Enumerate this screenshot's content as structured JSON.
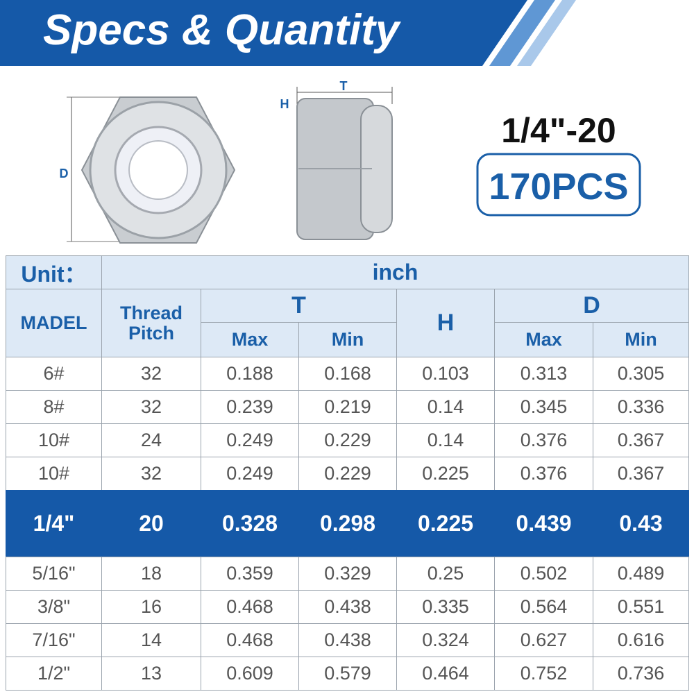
{
  "header": {
    "title": "Specs & Quantity"
  },
  "diagram": {
    "d_label": "D",
    "t_label": "T",
    "h_label": "H"
  },
  "product": {
    "size": "1/4\"-20",
    "quantity": "170PCS"
  },
  "table": {
    "unit_label": "Unit：",
    "unit": "inch",
    "headers": {
      "model": "MADEL",
      "pitch": "Thread Pitch",
      "t": "T",
      "h": "H",
      "d": "D",
      "t_max": "Max",
      "t_min": "Min",
      "d_max": "Max",
      "d_min": "Min"
    },
    "highlight_row": 4,
    "rows": [
      [
        "6#",
        "32",
        "0.188",
        "0.168",
        "0.103",
        "0.313",
        "0.305"
      ],
      [
        "8#",
        "32",
        "0.239",
        "0.219",
        "0.14",
        "0.345",
        "0.336"
      ],
      [
        "10#",
        "24",
        "0.249",
        "0.229",
        "0.14",
        "0.376",
        "0.367"
      ],
      [
        "10#",
        "32",
        "0.249",
        "0.229",
        "0.225",
        "0.376",
        "0.367"
      ],
      [
        "1/4\"",
        "20",
        "0.328",
        "0.298",
        "0.225",
        "0.439",
        "0.43"
      ],
      [
        "5/16\"",
        "18",
        "0.359",
        "0.329",
        "0.25",
        "0.502",
        "0.489"
      ],
      [
        "3/8\"",
        "16",
        "0.468",
        "0.438",
        "0.335",
        "0.564",
        "0.551"
      ],
      [
        "7/16\"",
        "14",
        "0.468",
        "0.438",
        "0.324",
        "0.627",
        "0.616"
      ],
      [
        "1/2\"",
        "13",
        "0.609",
        "0.579",
        "0.464",
        "0.752",
        "0.736"
      ]
    ]
  }
}
